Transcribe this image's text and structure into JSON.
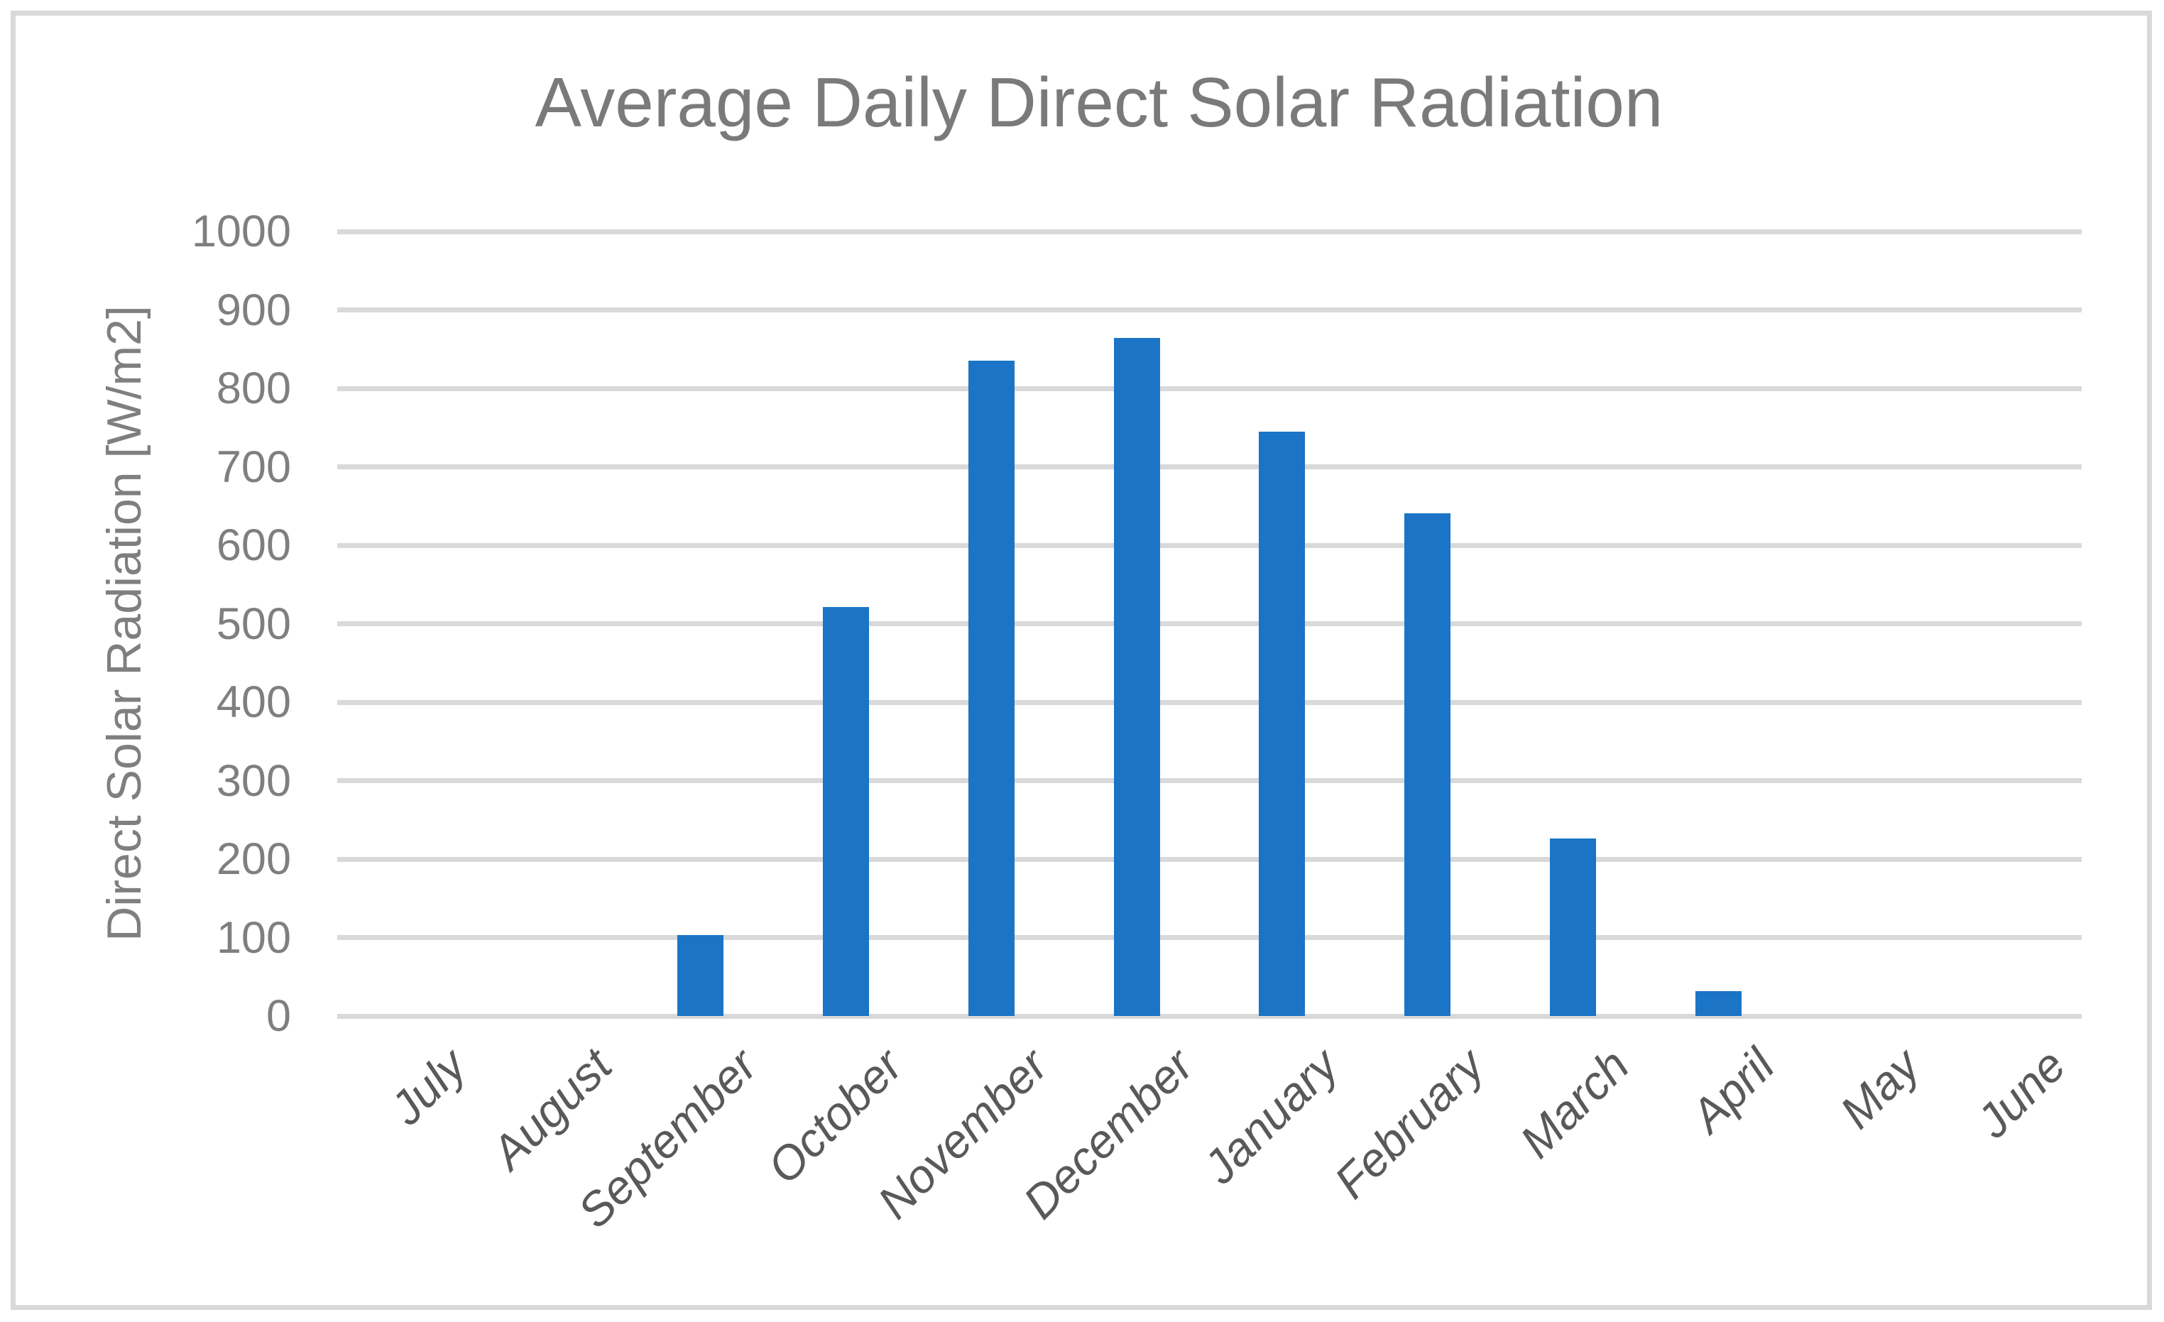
{
  "chart": {
    "title": "Average Daily Direct Solar Radiation",
    "y_axis_title": "Direct Solar Radiation [W/m2]"
  },
  "chart_data": {
    "type": "bar",
    "title": "Average Daily Direct Solar Radiation",
    "xlabel": "",
    "ylabel": "Direct Solar Radiation [W/m2]",
    "categories": [
      "July",
      "August",
      "September",
      "October",
      "November",
      "December",
      "January",
      "February",
      "March",
      "April",
      "May",
      "June"
    ],
    "values": [
      0,
      0,
      103,
      521,
      835,
      864,
      745,
      641,
      226,
      32,
      0,
      0
    ],
    "ylim": [
      0,
      1000
    ],
    "ytick_step": 100,
    "ytick_labels": [
      "0",
      "100",
      "200",
      "300",
      "400",
      "500",
      "600",
      "700",
      "800",
      "900",
      "1000"
    ],
    "grid": true,
    "legend": false,
    "bar_color": "#1b74c5",
    "gridline_color": "#d9d9d9",
    "title_color": "#7a7a7a",
    "axis_label_color": "#7f7f7f",
    "category_label_color": "#595959"
  }
}
